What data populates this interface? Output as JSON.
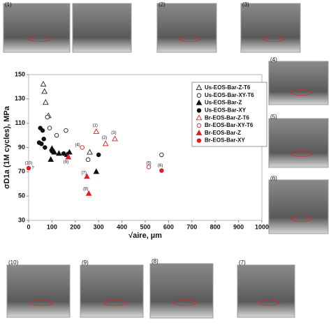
{
  "chart_data": {
    "type": "scatter",
    "x_label": "√aire, µm",
    "y_label": "σD1a (1M cycles), MPa",
    "xlim": [
      0,
      1000
    ],
    "xticks": [
      0,
      100,
      200,
      300,
      400,
      500,
      600,
      700,
      800,
      900,
      1000
    ],
    "ylim": [
      30,
      150
    ],
    "yticks": [
      30,
      50,
      70,
      90,
      110,
      130,
      150
    ],
    "grid": false,
    "legend": "upper right",
    "series": [
      {
        "name": "Us-EOS-Bar-Z-T6",
        "color": "#222222",
        "marker": "triangle",
        "filled": false,
        "x": [
          63,
          68,
          73,
          85,
          262
        ],
        "values": [
          142,
          136,
          127,
          116,
          86
        ]
      },
      {
        "name": "Us-EOS-Bar-XY-T6",
        "color": "#222222",
        "marker": "circle",
        "filled": false,
        "x": [
          80,
          90,
          120,
          160,
          255,
          570
        ],
        "values": [
          115,
          106,
          100,
          104,
          80,
          84
        ]
      },
      {
        "name": "Us-EOS-Bar-Z",
        "color": "#111111",
        "marker": "triangle",
        "filled": true,
        "x": [
          95,
          100,
          110,
          130,
          165,
          175,
          290
        ],
        "values": [
          80,
          89,
          86,
          85,
          84,
          86,
          70
        ]
      },
      {
        "name": "Us-EOS-Bar-XY",
        "color": "#111111",
        "marker": "circle",
        "filled": true,
        "x": [
          45,
          50,
          55,
          60,
          65,
          70,
          100,
          150,
          300
        ],
        "values": [
          94,
          106,
          93,
          104,
          97,
          90,
          87,
          85,
          84
        ]
      },
      {
        "name": "Br-EOS-Bar-Z-T6",
        "color": "#e02020",
        "marker": "triangle",
        "filled": false,
        "x": [
          290,
          330,
          370
        ],
        "values": [
          103,
          93,
          97
        ]
      },
      {
        "name": "Br-EOS-Bar-XY-T6",
        "color": "#e02020",
        "marker": "circle",
        "filled": false,
        "x": [
          230,
          515
        ],
        "values": [
          90,
          74
        ]
      },
      {
        "name": "Br-EOS-Bar-Z",
        "color": "#e02020",
        "marker": "triangle",
        "filled": true,
        "x": [
          170,
          250,
          258
        ],
        "values": [
          82,
          66,
          52
        ]
      },
      {
        "name": "Br-EOS-Bar-XY",
        "color": "#e02020",
        "marker": "circle",
        "filled": true,
        "x": [
          0,
          570
        ],
        "values": [
          73,
          71
        ]
      }
    ],
    "annotations": [
      {
        "text": "(1)",
        "x": 285,
        "y": 108
      },
      {
        "text": "(2)",
        "x": 325,
        "y": 98
      },
      {
        "text": "(3)",
        "x": 365,
        "y": 102
      },
      {
        "text": "(4)",
        "x": 210,
        "y": 92
      },
      {
        "text": "(5)",
        "x": 515,
        "y": 77
      },
      {
        "text": "(6)",
        "x": 565,
        "y": 75
      },
      {
        "text": "(7)",
        "x": 237,
        "y": 69
      },
      {
        "text": "(8)",
        "x": 245,
        "y": 56
      },
      {
        "text": "(9)",
        "x": 160,
        "y": 78
      },
      {
        "text": "(10)",
        "x": 0,
        "y": 77
      },
      {
        "text": "?",
        "x": 18,
        "y": 73
      }
    ]
  },
  "panels": [
    "(1)",
    "(2)",
    "(3)",
    "(4)",
    "(5)",
    "(6)",
    "(7)",
    "(8)",
    "(9)",
    "(10)"
  ]
}
